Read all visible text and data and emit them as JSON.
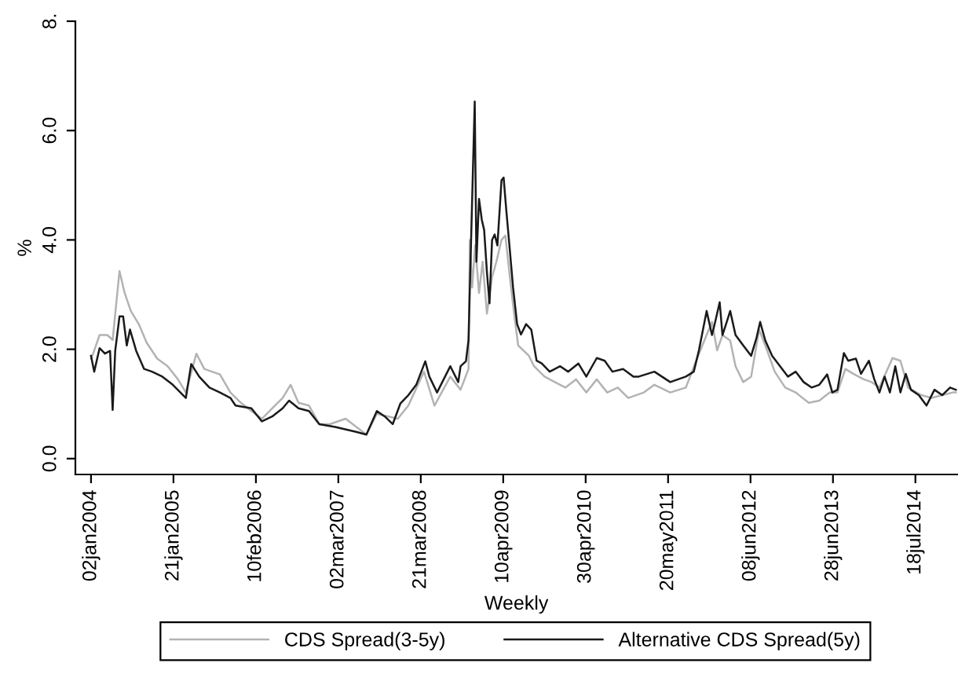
{
  "chart_data": {
    "type": "line",
    "xlabel": "Weekly",
    "ylabel": "%",
    "xlim": [
      "2003-10-21",
      "2015-01-30"
    ],
    "ylim": [
      -0.29,
      8
    ],
    "xticks": [
      {
        "value": "2004-01-02",
        "label": "02jan2004"
      },
      {
        "value": "2005-01-21",
        "label": "21jan2005"
      },
      {
        "value": "2006-02-10",
        "label": "10feb2006"
      },
      {
        "value": "2007-03-02",
        "label": "02mar2007"
      },
      {
        "value": "2008-03-21",
        "label": "21mar2008"
      },
      {
        "value": "2009-04-10",
        "label": "10apr2009"
      },
      {
        "value": "2010-04-30",
        "label": "30apr2010"
      },
      {
        "value": "2011-05-20",
        "label": "20may2011"
      },
      {
        "value": "2012-06-08",
        "label": "08jun2012"
      },
      {
        "value": "2013-06-28",
        "label": "28jun2013"
      },
      {
        "value": "2014-07-18",
        "label": "18jul2014"
      }
    ],
    "yticks": [
      {
        "value": 0,
        "label": "0.0"
      },
      {
        "value": 2,
        "label": "2.0"
      },
      {
        "value": 4,
        "label": "4.0"
      },
      {
        "value": 6,
        "label": "6.0"
      },
      {
        "value": 8,
        "label": "8."
      }
    ],
    "legend": "bottom",
    "series": [
      {
        "name": "CDS Spread(3-5y)",
        "color": "#b3b3b3",
        "x": [
          "2004-01-02",
          "2004-01-12",
          "2004-02-11",
          "2004-03-18",
          "2004-04-12",
          "2004-05-14",
          "2004-06-07",
          "2004-07-06",
          "2004-08-12",
          "2004-09-18",
          "2004-11-06",
          "2004-12-25",
          "2005-02-11",
          "2005-03-20",
          "2005-05-08",
          "2005-06-14",
          "2005-07-20",
          "2005-08-26",
          "2005-10-14",
          "2005-12-02",
          "2006-01-20",
          "2006-03-10",
          "2006-04-27",
          "2006-06-15",
          "2006-07-22",
          "2006-08-28",
          "2006-10-16",
          "2006-12-03",
          "2007-01-21",
          "2007-04-05",
          "2007-07-11",
          "2007-08-29",
          "2007-12-05",
          "2008-01-23",
          "2008-04-05",
          "2008-05-24",
          "2008-08-06",
          "2008-09-23",
          "2008-10-30",
          "2008-11-05",
          "2008-11-16",
          "2008-11-30",
          "2008-12-18",
          "2009-01-04",
          "2009-01-24",
          "2009-02-17",
          "2009-03-09",
          "2009-04-02",
          "2009-04-20",
          "2009-05-14",
          "2009-05-31",
          "2009-06-19",
          "2009-08-08",
          "2009-09-01",
          "2009-10-20",
          "2009-12-07",
          "2010-01-26",
          "2010-03-16",
          "2010-05-03",
          "2010-06-21",
          "2010-08-09",
          "2010-09-27",
          "2010-11-15",
          "2011-01-27",
          "2011-03-17",
          "2011-05-30",
          "2011-08-11",
          "2011-09-28",
          "2011-11-16",
          "2011-12-11",
          "2012-01-04",
          "2012-01-29",
          "2012-03-05",
          "2012-03-30",
          "2012-05-05",
          "2012-06-11",
          "2012-07-18",
          "2012-08-16",
          "2012-09-29",
          "2012-11-17",
          "2013-01-05",
          "2013-03-07",
          "2013-04-25",
          "2013-06-13",
          "2013-07-19",
          "2013-08-25",
          "2013-10-01",
          "2013-11-19",
          "2013-12-25",
          "2014-01-31",
          "2014-04-02",
          "2014-05-09",
          "2014-06-14",
          "2014-08-15",
          "2014-10-02",
          "2014-11-20",
          "2015-01-09",
          "2015-01-23"
        ],
        "values": [
          1.83,
          1.92,
          2.26,
          2.26,
          2.17,
          3.43,
          3.03,
          2.7,
          2.46,
          2.12,
          1.83,
          1.69,
          1.45,
          1.21,
          1.92,
          1.64,
          1.59,
          1.54,
          1.21,
          1.02,
          0.87,
          0.73,
          0.92,
          1.11,
          1.35,
          1.02,
          0.97,
          0.63,
          0.63,
          0.73,
          0.44,
          0.82,
          0.73,
          0.97,
          1.59,
          0.97,
          1.5,
          1.26,
          1.64,
          4.0,
          3.13,
          3.9,
          3.03,
          3.6,
          2.65,
          3.32,
          3.6,
          4.0,
          4.08,
          3.22,
          2.65,
          2.07,
          1.88,
          1.69,
          1.5,
          1.4,
          1.3,
          1.45,
          1.21,
          1.45,
          1.21,
          1.3,
          1.11,
          1.21,
          1.35,
          1.21,
          1.3,
          1.79,
          2.26,
          2.5,
          1.98,
          2.26,
          2.16,
          1.69,
          1.4,
          1.5,
          2.36,
          2.07,
          1.59,
          1.3,
          1.21,
          1.02,
          1.06,
          1.21,
          1.21,
          1.64,
          1.55,
          1.45,
          1.4,
          1.3,
          1.84,
          1.79,
          1.3,
          1.16,
          1.11,
          1.16,
          1.21,
          1.21
        ]
      },
      {
        "name": "Alternative CDS Spread(5y)",
        "color": "#1a1a1a",
        "x": [
          "2004-01-02",
          "2004-01-17",
          "2004-02-11",
          "2004-03-07",
          "2004-03-31",
          "2004-04-12",
          "2004-04-24",
          "2004-05-14",
          "2004-05-31",
          "2004-06-17",
          "2004-07-02",
          "2004-07-31",
          "2004-09-06",
          "2004-10-13",
          "2004-11-30",
          "2005-01-18",
          "2005-03-20",
          "2005-04-14",
          "2005-05-21",
          "2005-07-08",
          "2005-08-26",
          "2005-10-14",
          "2005-11-07",
          "2006-01-20",
          "2006-03-10",
          "2006-04-27",
          "2006-06-15",
          "2006-07-15",
          "2006-08-28",
          "2006-10-16",
          "2006-12-03",
          "2007-02-15",
          "2007-05-24",
          "2007-07-11",
          "2007-08-29",
          "2007-10-05",
          "2007-11-11",
          "2007-12-17",
          "2008-01-23",
          "2008-02-29",
          "2008-04-11",
          "2008-04-30",
          "2008-06-05",
          "2008-08-06",
          "2008-09-12",
          "2008-09-23",
          "2008-10-18",
          "2008-10-30",
          "2008-11-11",
          "2008-11-28",
          "2008-12-06",
          "2008-12-18",
          "2008-12-31",
          "2009-01-11",
          "2009-01-24",
          "2009-02-05",
          "2009-02-17",
          "2009-03-01",
          "2009-03-14",
          "2009-04-02",
          "2009-04-12",
          "2009-04-24",
          "2009-05-09",
          "2009-05-26",
          "2009-06-14",
          "2009-07-02",
          "2009-07-26",
          "2009-08-19",
          "2009-09-13",
          "2009-10-07",
          "2009-11-13",
          "2010-01-01",
          "2010-02-07",
          "2010-03-27",
          "2010-05-03",
          "2010-06-21",
          "2010-07-28",
          "2010-09-02",
          "2010-10-22",
          "2010-12-09",
          "2011-01-03",
          "2011-03-17",
          "2011-05-30",
          "2011-08-11",
          "2011-09-17",
          "2011-10-11",
          "2011-11-16",
          "2011-12-11",
          "2011-12-23",
          "2012-01-16",
          "2012-01-29",
          "2012-02-22",
          "2012-03-05",
          "2012-03-30",
          "2012-05-05",
          "2012-06-11",
          "2012-07-06",
          "2012-07-23",
          "2012-08-16",
          "2012-09-17",
          "2012-10-24",
          "2012-11-30",
          "2013-01-05",
          "2013-02-11",
          "2013-03-20",
          "2013-04-25",
          "2013-06-01",
          "2013-06-25",
          "2013-07-19",
          "2013-08-18",
          "2013-09-07",
          "2013-10-13",
          "2013-11-06",
          "2013-12-13",
          "2014-01-07",
          "2014-01-31",
          "2014-02-24",
          "2014-03-21",
          "2014-04-15",
          "2014-05-09",
          "2014-06-03",
          "2014-06-27",
          "2014-08-03",
          "2014-09-08",
          "2014-10-15",
          "2014-11-20",
          "2014-12-27",
          "2015-01-23"
        ],
        "values": [
          1.88,
          1.59,
          2.02,
          1.92,
          1.97,
          0.89,
          1.97,
          2.6,
          2.6,
          2.07,
          2.36,
          1.97,
          1.64,
          1.59,
          1.5,
          1.35,
          1.11,
          1.73,
          1.5,
          1.3,
          1.21,
          1.11,
          0.97,
          0.92,
          0.68,
          0.77,
          0.92,
          1.06,
          0.92,
          0.87,
          0.63,
          0.58,
          0.49,
          0.44,
          0.87,
          0.77,
          0.63,
          1.01,
          1.16,
          1.35,
          1.78,
          1.5,
          1.21,
          1.69,
          1.4,
          1.69,
          1.78,
          2.17,
          4.0,
          6.53,
          3.6,
          4.75,
          4.37,
          4.18,
          3.41,
          2.84,
          4.0,
          4.1,
          3.9,
          5.09,
          5.14,
          4.56,
          3.9,
          3.13,
          2.46,
          2.27,
          2.46,
          2.36,
          1.79,
          1.74,
          1.59,
          1.69,
          1.59,
          1.74,
          1.5,
          1.84,
          1.79,
          1.59,
          1.64,
          1.5,
          1.5,
          1.59,
          1.4,
          1.5,
          1.59,
          1.98,
          2.7,
          2.26,
          2.45,
          2.86,
          2.26,
          2.55,
          2.7,
          2.26,
          2.07,
          1.88,
          2.21,
          2.5,
          2.16,
          1.88,
          1.69,
          1.5,
          1.59,
          1.4,
          1.3,
          1.35,
          1.54,
          1.21,
          1.26,
          1.93,
          1.79,
          1.83,
          1.55,
          1.79,
          1.45,
          1.21,
          1.5,
          1.21,
          1.69,
          1.21,
          1.55,
          1.26,
          1.16,
          0.97,
          1.26,
          1.16,
          1.3,
          1.26
        ]
      }
    ]
  }
}
